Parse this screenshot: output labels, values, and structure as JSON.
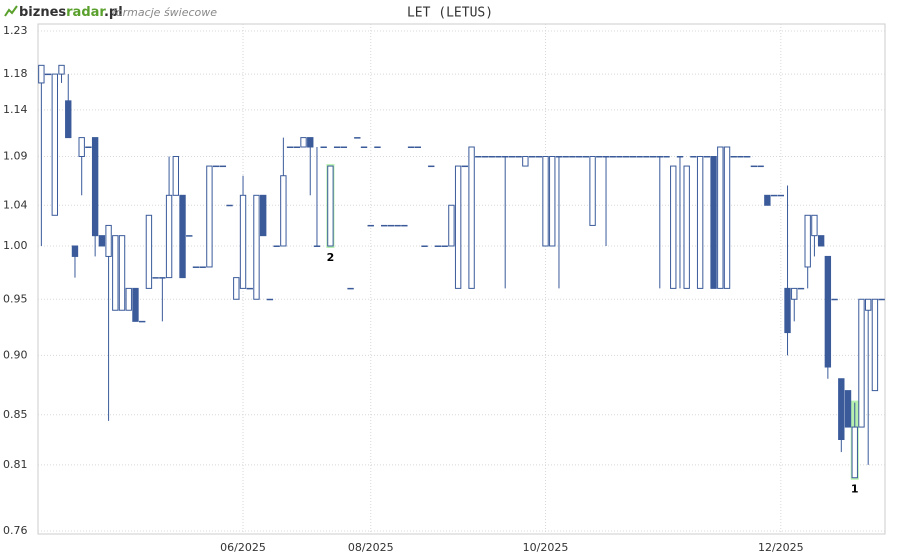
{
  "header": {
    "logo": [
      "biznes",
      "radar",
      ".pl"
    ],
    "subtitle": "formacje świecowe"
  },
  "chart_data": {
    "type": "candlestick",
    "title": "LET (LETUS)",
    "log_scale": true,
    "grid": true,
    "up_color": "#ffffff",
    "down_color": "#3a5a9a",
    "line_color": "#3a5a9a",
    "highlight_color": "#b8f0b0",
    "ylim": [
      0.76,
      1.23
    ],
    "yticks": [
      0.76,
      0.81,
      0.85,
      {
        "value": 0.9,
        "label": "0.90"
      },
      0.95,
      {
        "value": 1,
        "label": "1.00"
      },
      1.04,
      1.09,
      1.14,
      1.18,
      1.23
    ],
    "categories": [
      null,
      null,
      null,
      null,
      null,
      null,
      null,
      null,
      null,
      null,
      null,
      null,
      null,
      null,
      null,
      null,
      null,
      null,
      null,
      null,
      null,
      null,
      null,
      null,
      null,
      null,
      null,
      null,
      null,
      null,
      "06/2025",
      null,
      null,
      null,
      null,
      null,
      null,
      null,
      null,
      null,
      null,
      null,
      null,
      null,
      null,
      null,
      null,
      null,
      null,
      "08/2025",
      null,
      null,
      null,
      null,
      null,
      null,
      null,
      null,
      null,
      null,
      null,
      null,
      null,
      null,
      null,
      null,
      null,
      null,
      null,
      null,
      null,
      null,
      null,
      null,
      null,
      "10/2025",
      null,
      null,
      null,
      null,
      null,
      null,
      null,
      null,
      null,
      null,
      null,
      null,
      null,
      null,
      null,
      null,
      null,
      null,
      null,
      null,
      null,
      null,
      null,
      null,
      null,
      null,
      null,
      null,
      null,
      null,
      null,
      null,
      null,
      null,
      "12/2025",
      null,
      null,
      null,
      null,
      null,
      null,
      null,
      null,
      null,
      null,
      null,
      null,
      null,
      null,
      null
    ],
    "ohlc": [
      [
        1.17,
        1.19,
        1.0,
        1.19
      ],
      [
        1.18,
        1.18,
        1.18,
        1.18
      ],
      [
        1.03,
        1.18,
        1.03,
        1.18
      ],
      [
        1.18,
        1.19,
        1.17,
        1.19
      ],
      [
        1.15,
        1.18,
        1.11,
        1.11
      ],
      [
        1.0,
        1.0,
        0.97,
        0.99
      ],
      [
        1.09,
        1.11,
        1.05,
        1.11
      ],
      [
        1.1,
        1.1,
        1.1,
        1.1
      ],
      [
        1.11,
        1.11,
        0.99,
        1.01
      ],
      [
        1.01,
        1.01,
        1.0,
        1.0
      ],
      [
        0.99,
        1.02,
        0.845,
        1.02
      ],
      [
        0.94,
        1.01,
        0.94,
        1.01
      ],
      [
        0.94,
        1.01,
        0.94,
        1.01
      ],
      [
        0.94,
        0.96,
        0.94,
        0.96
      ],
      [
        0.96,
        0.96,
        0.93,
        0.93
      ],
      [
        0.93,
        0.93,
        0.93,
        0.93
      ],
      [
        0.96,
        1.03,
        0.96,
        1.03
      ],
      [
        0.97,
        0.97,
        0.97,
        0.97
      ],
      [
        0.97,
        0.97,
        0.93,
        0.97
      ],
      [
        0.97,
        1.09,
        0.97,
        1.05
      ],
      [
        1.05,
        1.09,
        1.05,
        1.09
      ],
      [
        1.05,
        1.05,
        0.97,
        0.97
      ],
      [
        1.01,
        1.01,
        1.01,
        1.01
      ],
      [
        0.98,
        0.98,
        0.98,
        0.98
      ],
      [
        0.98,
        0.98,
        0.98,
        0.98
      ],
      [
        0.98,
        1.08,
        0.98,
        1.08
      ],
      [
        1.08,
        1.08,
        1.08,
        1.08
      ],
      [
        1.08,
        1.08,
        1.08,
        1.08
      ],
      [
        1.04,
        1.04,
        1.04,
        1.04
      ],
      [
        0.95,
        0.97,
        0.95,
        0.97
      ],
      [
        0.96,
        1.07,
        0.96,
        1.05
      ],
      [
        0.96,
        0.96,
        0.96,
        0.96
      ],
      [
        0.95,
        1.05,
        0.95,
        1.05
      ],
      [
        1.05,
        1.05,
        1.01,
        1.01
      ],
      [
        0.95,
        0.95,
        0.95,
        0.95
      ],
      [
        1.0,
        1.0,
        1.0,
        1.0
      ],
      [
        1.0,
        1.11,
        1.0,
        1.07
      ],
      [
        1.1,
        1.1,
        1.1,
        1.1
      ],
      [
        1.1,
        1.1,
        1.1,
        1.1
      ],
      [
        1.1,
        1.11,
        1.1,
        1.11
      ],
      [
        1.11,
        1.11,
        1.05,
        1.1
      ],
      [
        1.0,
        1.1,
        1.0,
        1.0
      ],
      [
        1.1,
        1.1,
        1.1,
        1.1
      ],
      [
        1.0,
        1.08,
        1.0,
        1.08
      ],
      [
        1.1,
        1.1,
        1.1,
        1.1
      ],
      [
        1.1,
        1.1,
        1.1,
        1.1
      ],
      [
        0.96,
        0.96,
        0.96,
        0.96
      ],
      [
        1.11,
        1.11,
        1.11,
        1.11
      ],
      [
        1.1,
        1.1,
        1.1,
        1.1
      ],
      [
        1.02,
        1.02,
        1.02,
        1.02
      ],
      [
        1.1,
        1.1,
        1.1,
        1.1
      ],
      [
        1.02,
        1.02,
        1.02,
        1.02
      ],
      [
        1.02,
        1.02,
        1.02,
        1.02
      ],
      [
        1.02,
        1.02,
        1.02,
        1.02
      ],
      [
        1.02,
        1.02,
        1.02,
        1.02
      ],
      [
        1.1,
        1.1,
        1.1,
        1.1
      ],
      [
        1.1,
        1.1,
        1.1,
        1.1
      ],
      [
        1.0,
        1.0,
        1.0,
        1.0
      ],
      [
        1.08,
        1.08,
        1.08,
        1.08
      ],
      [
        1.0,
        1.0,
        1.0,
        1.0
      ],
      [
        1.0,
        1.0,
        1.0,
        1.0
      ],
      [
        1.0,
        1.04,
        1.0,
        1.04
      ],
      [
        0.96,
        1.08,
        0.96,
        1.08
      ],
      [
        1.08,
        1.08,
        1.08,
        1.08
      ],
      [
        0.96,
        1.1,
        0.96,
        1.1
      ],
      [
        1.09,
        1.09,
        1.09,
        1.09
      ],
      [
        1.09,
        1.09,
        1.09,
        1.09
      ],
      [
        1.09,
        1.09,
        1.09,
        1.09
      ],
      [
        1.09,
        1.09,
        1.09,
        1.09
      ],
      [
        1.09,
        1.09,
        0.96,
        1.09
      ],
      [
        1.09,
        1.09,
        1.09,
        1.09
      ],
      [
        1.09,
        1.09,
        1.09,
        1.09
      ],
      [
        1.08,
        1.09,
        1.08,
        1.09
      ],
      [
        1.09,
        1.09,
        1.09,
        1.09
      ],
      [
        1.09,
        1.09,
        1.09,
        1.09
      ],
      [
        1.0,
        1.09,
        1.0,
        1.09
      ],
      [
        1.0,
        1.09,
        1.0,
        1.09
      ],
      [
        1.09,
        1.09,
        0.96,
        1.09
      ],
      [
        1.09,
        1.09,
        1.09,
        1.09
      ],
      [
        1.09,
        1.09,
        1.09,
        1.09
      ],
      [
        1.09,
        1.09,
        1.09,
        1.09
      ],
      [
        1.09,
        1.09,
        1.09,
        1.09
      ],
      [
        1.02,
        1.09,
        1.02,
        1.09
      ],
      [
        1.09,
        1.09,
        1.09,
        1.09
      ],
      [
        1.09,
        1.09,
        1.0,
        1.09
      ],
      [
        1.09,
        1.09,
        1.09,
        1.09
      ],
      [
        1.09,
        1.09,
        1.09,
        1.09
      ],
      [
        1.09,
        1.09,
        1.09,
        1.09
      ],
      [
        1.09,
        1.09,
        1.09,
        1.09
      ],
      [
        1.09,
        1.09,
        1.09,
        1.09
      ],
      [
        1.09,
        1.09,
        1.09,
        1.09
      ],
      [
        1.09,
        1.09,
        1.09,
        1.09
      ],
      [
        1.09,
        1.09,
        0.96,
        1.09
      ],
      [
        1.09,
        1.09,
        1.09,
        1.09
      ],
      [
        0.96,
        1.08,
        0.96,
        1.08
      ],
      [
        1.09,
        1.09,
        0.96,
        1.09
      ],
      [
        0.96,
        1.08,
        0.96,
        1.08
      ],
      [
        1.09,
        1.09,
        1.09,
        1.09
      ],
      [
        0.96,
        1.09,
        0.96,
        1.09
      ],
      [
        1.09,
        1.09,
        1.09,
        1.09
      ],
      [
        1.09,
        1.09,
        0.96,
        0.96
      ],
      [
        0.96,
        1.1,
        0.96,
        1.1
      ],
      [
        0.96,
        1.1,
        0.96,
        1.1
      ],
      [
        1.09,
        1.09,
        1.09,
        1.09
      ],
      [
        1.09,
        1.09,
        1.09,
        1.09
      ],
      [
        1.09,
        1.09,
        1.09,
        1.09
      ],
      [
        1.08,
        1.08,
        1.08,
        1.08
      ],
      [
        1.08,
        1.08,
        1.08,
        1.08
      ],
      [
        1.05,
        1.05,
        1.04,
        1.04
      ],
      [
        1.05,
        1.05,
        1.05,
        1.05
      ],
      [
        1.05,
        1.05,
        1.05,
        1.05
      ],
      [
        0.96,
        1.06,
        0.9,
        0.92
      ],
      [
        0.95,
        0.96,
        0.93,
        0.96
      ],
      [
        0.96,
        0.96,
        0.96,
        0.96
      ],
      [
        0.98,
        1.03,
        0.96,
        1.03
      ],
      [
        1.01,
        1.03,
        0.99,
        1.03
      ],
      [
        1.01,
        1.01,
        1.0,
        1.0
      ],
      [
        0.99,
        0.99,
        0.88,
        0.89
      ],
      [
        0.95,
        0.95,
        0.95,
        0.95
      ],
      [
        0.88,
        0.88,
        0.82,
        0.83
      ],
      [
        0.87,
        0.87,
        0.84,
        0.84
      ],
      [
        0.8,
        0.86,
        0.8,
        0.84
      ],
      [
        0.84,
        0.95,
        0.84,
        0.95
      ],
      [
        0.94,
        0.95,
        0.81,
        0.95
      ],
      [
        0.87,
        0.95,
        0.87,
        0.95
      ],
      [
        0.95,
        0.95,
        0.95,
        0.95
      ]
    ],
    "annotations": [
      {
        "text": "2",
        "at": 43
      },
      {
        "text": "1",
        "at": 121
      }
    ]
  }
}
